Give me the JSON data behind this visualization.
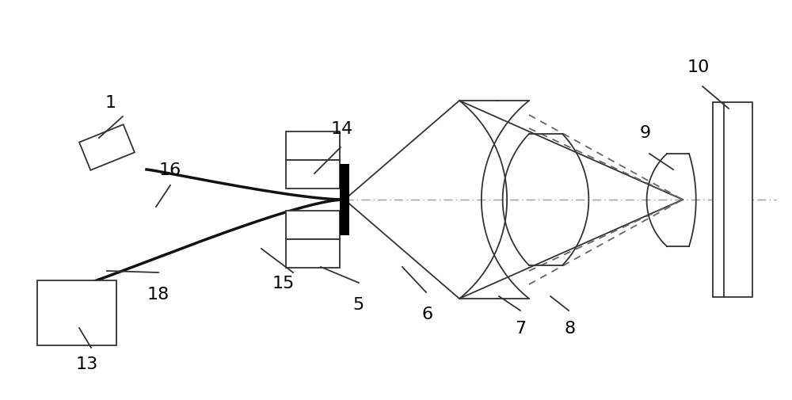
{
  "bg_color": "#ffffff",
  "lc": "#333333",
  "tc": "#111111",
  "dc": "#666666",
  "gray": "#999999",
  "figsize": [
    10.0,
    5.06
  ],
  "dpi": 100,
  "OAY": 0.5,
  "CPX": 0.435,
  "CPY": 0.5,
  "label_fs": 16
}
